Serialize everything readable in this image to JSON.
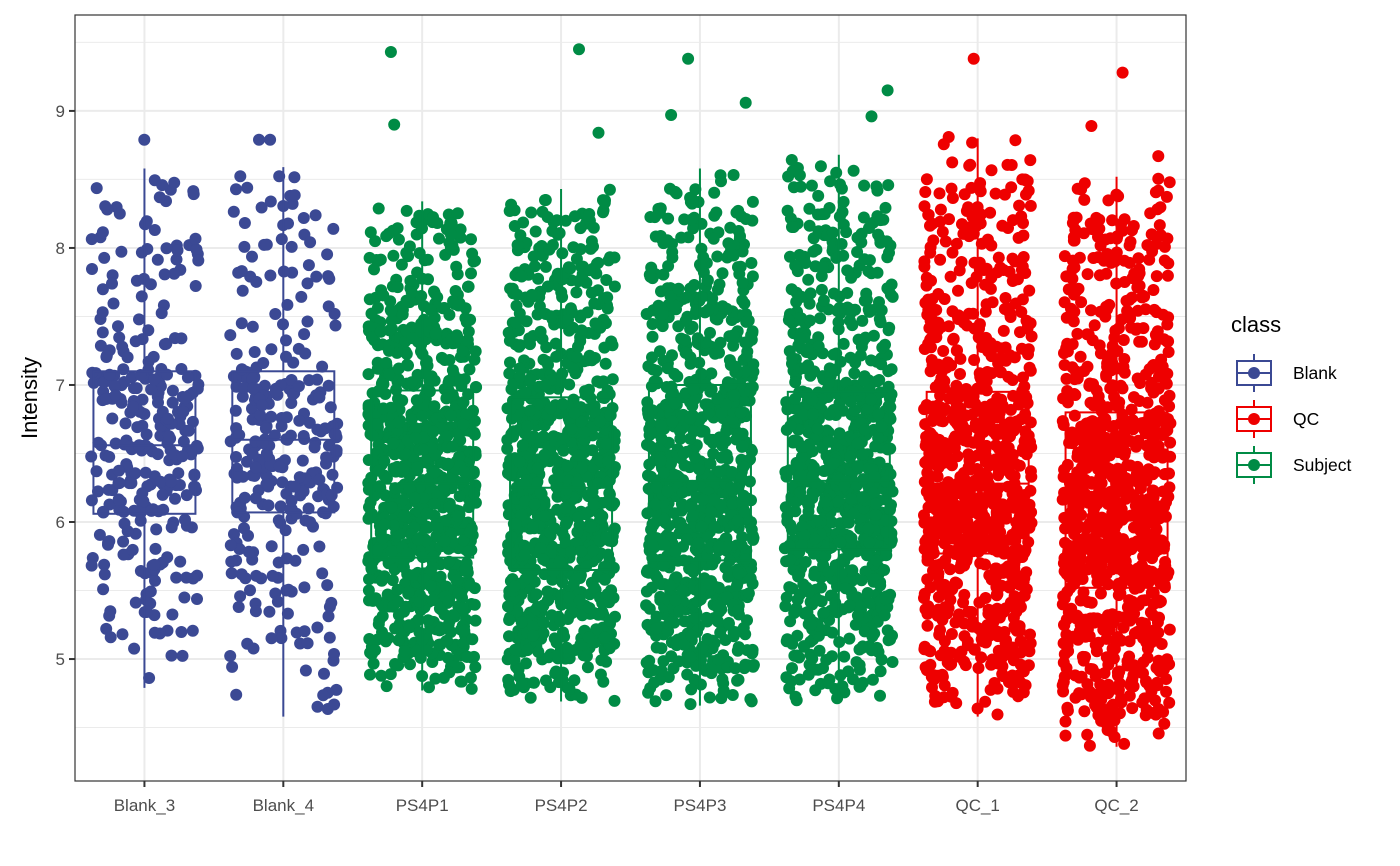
{
  "chart_data": {
    "type": "box",
    "subtype": "boxplot with jittered points",
    "title": "",
    "xlabel": "",
    "ylabel": "Intensity",
    "ylim": [
      4.11,
      9.7
    ],
    "yticks": [
      5,
      6,
      7,
      8,
      9
    ],
    "grid": true,
    "legend_position": "right",
    "legend_title": "class",
    "legend": [
      {
        "label": "Blank",
        "color": "#3B4994"
      },
      {
        "label": "QC",
        "color": "#EE0000"
      },
      {
        "label": "Subject",
        "color": "#008B45"
      }
    ],
    "categories": [
      "Blank_3",
      "Blank_4",
      "PS4P1",
      "PS4P2",
      "PS4P3",
      "PS4P4",
      "QC_1",
      "QC_2"
    ],
    "series": [
      {
        "name": "Blank_3",
        "class": "Blank",
        "whisker_low": 4.79,
        "q1": 6.06,
        "median": 6.56,
        "q3": 7.1,
        "whisker_high": 8.58,
        "n_points": 300,
        "outliers": [
          8.79
        ]
      },
      {
        "name": "Blank_4",
        "class": "Blank",
        "whisker_low": 4.58,
        "q1": 6.07,
        "median": 6.6,
        "q3": 7.1,
        "whisker_high": 8.59,
        "n_points": 300,
        "outliers": [
          8.79,
          8.79
        ]
      },
      {
        "name": "PS4P1",
        "class": "Subject",
        "whisker_low": 4.77,
        "q1": 5.74,
        "median": 6.28,
        "q3": 6.96,
        "whisker_high": 8.34,
        "n_points": 900,
        "outliers": [
          9.43,
          8.9
        ]
      },
      {
        "name": "PS4P2",
        "class": "Subject",
        "whisker_low": 4.69,
        "q1": 5.65,
        "median": 6.25,
        "q3": 6.91,
        "whisker_high": 8.43,
        "n_points": 900,
        "outliers": [
          9.45,
          8.84
        ]
      },
      {
        "name": "PS4P3",
        "class": "Subject",
        "whisker_low": 4.66,
        "q1": 5.72,
        "median": 6.3,
        "q3": 7.0,
        "whisker_high": 8.58,
        "n_points": 900,
        "outliers": [
          9.38,
          9.06,
          8.97
        ]
      },
      {
        "name": "PS4P4",
        "class": "Subject",
        "whisker_low": 4.69,
        "q1": 5.8,
        "median": 6.3,
        "q3": 6.95,
        "whisker_high": 8.68,
        "n_points": 900,
        "outliers": [
          9.15,
          8.96
        ]
      },
      {
        "name": "QC_1",
        "class": "QC",
        "whisker_low": 4.58,
        "q1": 5.77,
        "median": 6.28,
        "q3": 6.95,
        "whisker_high": 8.8,
        "n_points": 900,
        "outliers": [
          9.38,
          8.81
        ]
      },
      {
        "name": "QC_2",
        "class": "QC",
        "whisker_low": 4.36,
        "q1": 5.52,
        "median": 6.15,
        "q3": 6.8,
        "whisker_high": 8.52,
        "n_points": 900,
        "outliers": [
          9.28,
          8.89,
          8.67
        ]
      }
    ]
  },
  "axes": {
    "y_title": "Intensity",
    "y_tick_labels": [
      "5",
      "6",
      "7",
      "8",
      "9"
    ],
    "x_tick_labels": [
      "Blank_3",
      "Blank_4",
      "PS4P1",
      "PS4P2",
      "PS4P3",
      "PS4P4",
      "QC_1",
      "QC_2"
    ]
  },
  "legend": {
    "title": "class",
    "items": [
      {
        "label": "Blank",
        "color": "#3B4994"
      },
      {
        "label": "QC",
        "color": "#EE0000"
      },
      {
        "label": "Subject",
        "color": "#008B45"
      }
    ]
  }
}
